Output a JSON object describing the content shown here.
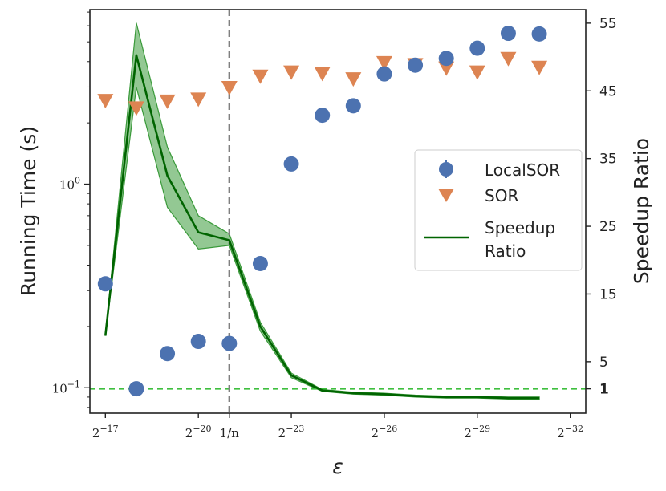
{
  "chart_data": {
    "type": "scatter",
    "title": "",
    "xlabel": "ε",
    "ylabel_left": "Running Time (s)",
    "ylabel_right": "Speedup Ratio",
    "x_scale": "log2 of epsilon (exponent k in 2^-k)",
    "x_positions": [
      17,
      18,
      19,
      20,
      21,
      22,
      23,
      24,
      25,
      26,
      27,
      28,
      29,
      30,
      31
    ],
    "x_ticks": [
      {
        "pos": 17,
        "label_base": "2",
        "label_exp": "−17"
      },
      {
        "pos": 20,
        "label_base": "2",
        "label_exp": "−20"
      },
      {
        "pos": 21,
        "label_base": "1/n",
        "label_exp": ""
      },
      {
        "pos": 23,
        "label_base": "2",
        "label_exp": "−23"
      },
      {
        "pos": 26,
        "label_base": "2",
        "label_exp": "−26"
      },
      {
        "pos": 29,
        "label_base": "2",
        "label_exp": "−29"
      },
      {
        "pos": 32,
        "label_base": "2",
        "label_exp": "−32"
      }
    ],
    "xlim": [
      16.5,
      32.5
    ],
    "vline": {
      "x": 21,
      "label": "1/n",
      "color": "#808080"
    },
    "left_axis": {
      "scale": "log",
      "ylim": [
        0.075,
        7.2
      ],
      "ticks": [
        {
          "value": 0.1,
          "label_base": "10",
          "label_exp": "−1"
        },
        {
          "value": 1,
          "label_base": "10",
          "label_exp": "0"
        }
      ]
    },
    "right_axis": {
      "scale": "linear",
      "ylim": [
        -2.6,
        57
      ],
      "ticks": [
        {
          "value": 1,
          "label": "1",
          "bold": true
        },
        {
          "value": 5,
          "label": "5",
          "bold": false
        },
        {
          "value": 15,
          "label": "15",
          "bold": false
        },
        {
          "value": 25,
          "label": "25",
          "bold": false
        },
        {
          "value": 35,
          "label": "35",
          "bold": false
        },
        {
          "value": 45,
          "label": "45",
          "bold": false
        },
        {
          "value": 55,
          "label": "55",
          "bold": false
        }
      ],
      "hline": {
        "value": 1,
        "color": "#3fbf3f"
      }
    },
    "series": [
      {
        "name": "LocalSOR",
        "axis": "right",
        "marker": "circle",
        "color": "#4c72b0",
        "values": [
          16.5,
          1.0,
          6.2,
          8.0,
          7.7,
          19.5,
          34.2,
          41.4,
          42.8,
          47.5,
          48.8,
          49.8,
          51.3,
          53.5,
          53.4
        ]
      },
      {
        "name": "SOR",
        "axis": "right",
        "marker": "triangle-down",
        "color": "#dd8452",
        "values": [
          43.6,
          42.5,
          43.5,
          43.8,
          45.5,
          47.2,
          47.8,
          47.6,
          46.8,
          49.2,
          48.9,
          48.4,
          47.8,
          49.8,
          48.5
        ]
      },
      {
        "name": "Speedup\nRatio",
        "legend_lines": [
          "Speedup",
          "Ratio"
        ],
        "axis": "left",
        "marker": "line",
        "color": "#006400",
        "band_color": "#3a9a3a",
        "values": [
          0.18,
          4.3,
          1.1,
          0.58,
          0.53,
          0.2,
          0.115,
          0.097,
          0.094,
          0.093,
          0.091,
          0.09,
          0.09,
          0.089,
          0.089
        ],
        "lower": [
          0.18,
          3.0,
          0.77,
          0.48,
          0.5,
          0.19,
          0.112,
          0.096,
          0.093,
          0.092,
          0.09,
          0.089,
          0.089,
          0.088,
          0.088
        ],
        "upper": [
          0.18,
          6.2,
          1.52,
          0.7,
          0.57,
          0.21,
          0.118,
          0.098,
          0.095,
          0.094,
          0.092,
          0.091,
          0.091,
          0.09,
          0.09
        ]
      }
    ],
    "legend": {
      "position": "center-right"
    }
  }
}
